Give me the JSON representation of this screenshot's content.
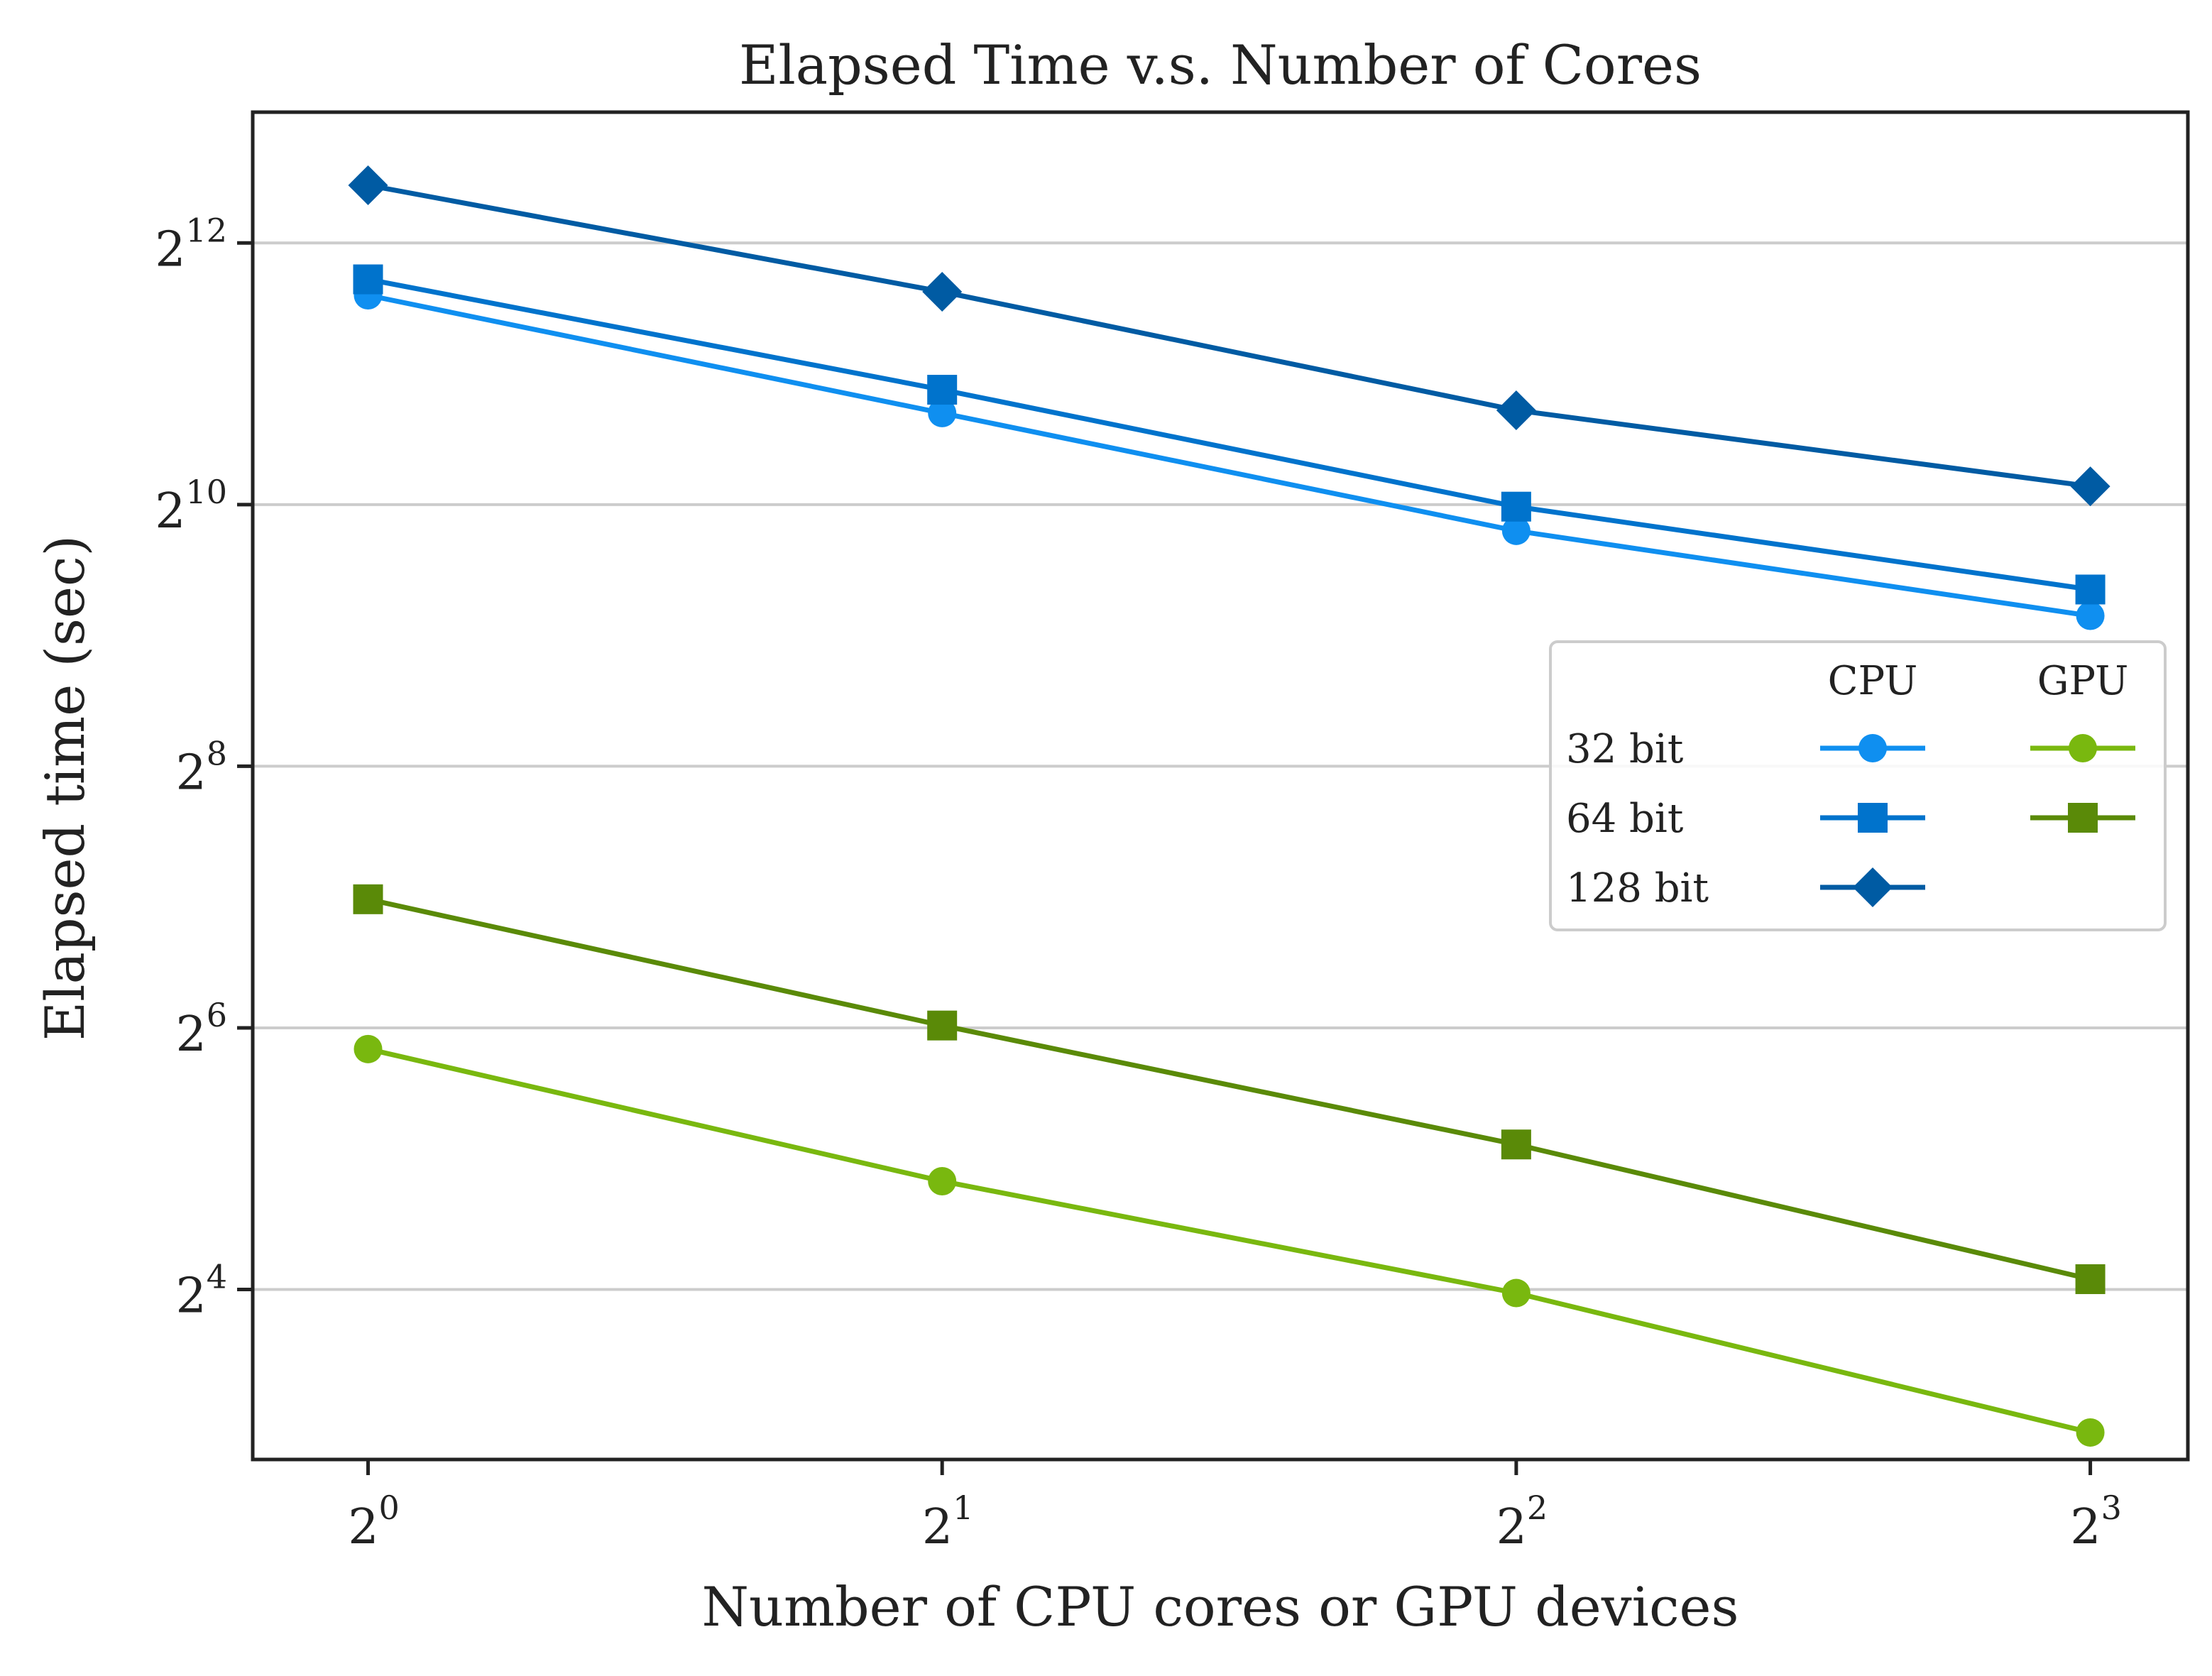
{
  "chart_data": {
    "type": "line",
    "title": "Elapsed Time v.s. Number of Cores",
    "xlabel": "Number of CPU cores or GPU devices",
    "ylabel": "Elapsed time (sec)",
    "x_scale": "log2",
    "y_scale": "log2",
    "x": [
      1,
      2,
      4,
      8
    ],
    "x_ticks": [
      {
        "base": "2",
        "exp": "0",
        "value": 1
      },
      {
        "base": "2",
        "exp": "1",
        "value": 2
      },
      {
        "base": "2",
        "exp": "2",
        "value": 4
      },
      {
        "base": "2",
        "exp": "3",
        "value": 8
      }
    ],
    "y_ticks": [
      {
        "base": "2",
        "exp": "4",
        "value": 16
      },
      {
        "base": "2",
        "exp": "6",
        "value": 64
      },
      {
        "base": "2",
        "exp": "8",
        "value": 256
      },
      {
        "base": "2",
        "exp": "10",
        "value": 1024
      },
      {
        "base": "2",
        "exp": "12",
        "value": 4096
      }
    ],
    "xlim": [
      0.87,
      9.0
    ],
    "ylim": [
      6.5,
      8192
    ],
    "grid": "horizontal",
    "legend": {
      "placement": "right",
      "col_headers": [
        "CPU",
        "GPU"
      ],
      "row_labels": [
        "32 bit",
        "64 bit",
        "128 bit"
      ]
    },
    "series": [
      {
        "device": "CPU",
        "bits": "32 bit",
        "marker": "circle",
        "color": "#0f8ff0",
        "values": [
          3104,
          1663,
          891,
          568
        ]
      },
      {
        "device": "CPU",
        "bits": "64 bit",
        "marker": "square",
        "color": "#0073cc",
        "values": [
          3378,
          1882,
          1013,
          653
        ]
      },
      {
        "device": "CPU",
        "bits": "128 bit",
        "marker": "diamond",
        "color": "#005ba3",
        "values": [
          5562,
          3163,
          1688,
          1128
        ]
      },
      {
        "device": "GPU",
        "bits": "32 bit",
        "marker": "circle",
        "color": "#79b80f",
        "values": [
          57.2,
          28.4,
          15.7,
          7.5
        ]
      },
      {
        "device": "GPU",
        "bits": "64 bit",
        "marker": "square",
        "color": "#5a8a08",
        "values": [
          126.5,
          64.8,
          34.5,
          16.9
        ]
      }
    ]
  }
}
